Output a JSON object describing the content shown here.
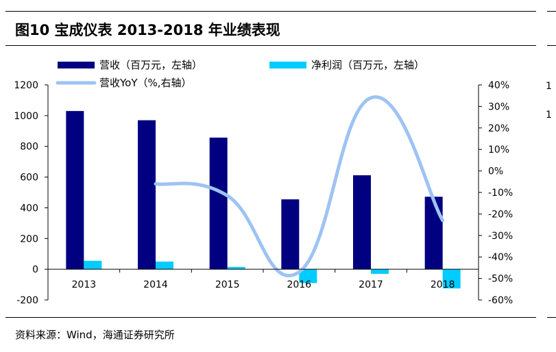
{
  "title": "图10 宝成仪表 2013-2018 年业绩表现",
  "source": "资料来源：Wind，海通证券研究所",
  "side_fragments": [
    "1",
    "1"
  ],
  "colors": {
    "revenue": "#000080",
    "profit": "#00CCFF",
    "yoy": "#9DC3F3",
    "axis": "#000000"
  },
  "legend": {
    "revenue": "营收（百万元，左轴）",
    "profit": "净利润（百万元，左轴）",
    "yoy": "营收YoY（%,右轴）"
  },
  "chart_data": {
    "type": "bar",
    "categories": [
      "2013",
      "2014",
      "2015",
      "2016",
      "2017",
      "2018"
    ],
    "series": [
      {
        "name": "营收（百万元，左轴）",
        "type": "bar",
        "axis": "left",
        "values": [
          1030,
          970,
          857,
          455,
          612,
          472
        ]
      },
      {
        "name": "净利润（百万元，左轴）",
        "type": "bar",
        "axis": "left",
        "values": [
          55,
          50,
          15,
          -90,
          -30,
          -125
        ]
      },
      {
        "name": "营收YoY（%,右轴）",
        "type": "line",
        "axis": "right",
        "smooth": true,
        "values": [
          null,
          -6,
          -11.5,
          -47,
          34,
          -23
        ]
      }
    ],
    "y_left": {
      "ylim": [
        -200,
        1200
      ],
      "ticks": [
        -200,
        0,
        200,
        400,
        600,
        800,
        1000,
        1200
      ]
    },
    "y_right": {
      "ylim": [
        -60,
        40
      ],
      "ticks": [
        -60,
        -50,
        -40,
        -30,
        -20,
        -10,
        0,
        10,
        20,
        30,
        40
      ],
      "tick_labels": [
        "-60%",
        "-50%",
        "-40%",
        "-30%",
        "-20%",
        "-10%",
        "0%",
        "10%",
        "20%",
        "30%",
        "40%"
      ]
    },
    "legend_position": "top",
    "grid": false
  }
}
